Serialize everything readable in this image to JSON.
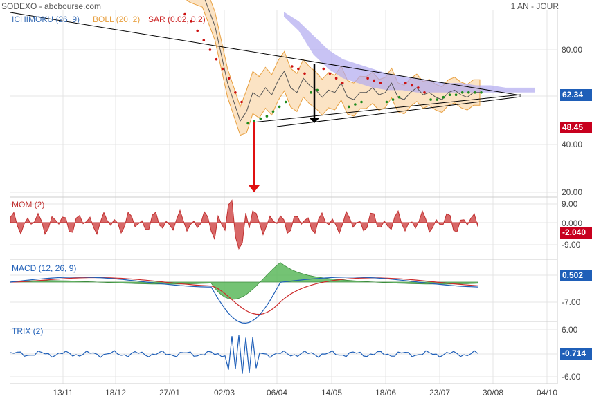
{
  "header": {
    "left": "SODEXO - abcbourse.com",
    "right": "1 AN - JOUR"
  },
  "main": {
    "legend": [
      {
        "text": "ICHIMOKU (26, 9)",
        "color": "#3b6fb6"
      },
      {
        "text": "BOLL (20, 2)",
        "color": "#e8a040"
      },
      {
        "text": "SAR (0.02, 0.2)",
        "color": "#cc2222"
      }
    ],
    "yticks": [
      "80.00",
      "60.00",
      "40.00",
      "20.00"
    ],
    "last_value": "62.34",
    "marker_value": "48.45"
  },
  "mom": {
    "label": "MOM (2)",
    "yticks": [
      "9.00",
      "0.000",
      "-9.00"
    ],
    "last_value": "-2.040"
  },
  "macd": {
    "label": "MACD (12, 26, 9)",
    "yticks": [
      "-7.00"
    ],
    "last_value": "0.502"
  },
  "trix": {
    "label": "TRIX (2)",
    "yticks": [
      "6.00",
      "-6.00"
    ],
    "last_value": "-0.714"
  },
  "x_ticks": [
    "13/11",
    "18/12",
    "27/01",
    "02/03",
    "06/04",
    "14/05",
    "18/06",
    "23/07",
    "30/08",
    "04/10"
  ],
  "colors": {
    "price": "#555555",
    "boll": "#e8a040",
    "boll_fill": "#fbe3c4",
    "cloud": "#b0aaf0",
    "sar_up": "#1e8a1e",
    "sar_down": "#cc1111",
    "mom": "#c03030",
    "mom_fill": "#d86868",
    "macd": "#1f5fb8",
    "signal": "#cc2a2a",
    "macd_hist": "#5cb85c",
    "trix": "#1f5fb8",
    "last_blue": "#1f5fb8",
    "last_red": "#c8001e"
  },
  "chart_data": [
    {
      "type": "line",
      "title": "SODEXO",
      "series": [
        {
          "name": "ICHIMOKU (26, 9)"
        },
        {
          "name": "BOLL (20, 2)"
        },
        {
          "name": "SAR (0.02, 0.2)"
        }
      ],
      "x": [
        "13/11",
        "18/12",
        "27/01",
        "02/03",
        "06/04",
        "14/05",
        "18/06",
        "23/07",
        "30/08",
        "04/10"
      ],
      "price": [
        108,
        106,
        105,
        104,
        97,
        90,
        78,
        66,
        58,
        50,
        54,
        62,
        60,
        64,
        61,
        67,
        71,
        64,
        62,
        68,
        65,
        63,
        60,
        63,
        62,
        66,
        60,
        59,
        62,
        62,
        64,
        61,
        62,
        66,
        60,
        59,
        62,
        64,
        61,
        62,
        60,
        59,
        62,
        63,
        61,
        60,
        62,
        62
      ],
      "ylim": [
        18,
        110
      ],
      "last": 62.34,
      "marker": 48.45
    },
    {
      "type": "bar",
      "title": "MOM (2)",
      "ylim": [
        -12,
        12
      ],
      "last": -2.04
    },
    {
      "type": "line",
      "title": "MACD (12, 26, 9)",
      "ylim": [
        -13,
        3
      ],
      "last": 0.502
    },
    {
      "type": "line",
      "title": "TRIX (2)",
      "ylim": [
        -8,
        8
      ],
      "last": -0.714
    }
  ]
}
